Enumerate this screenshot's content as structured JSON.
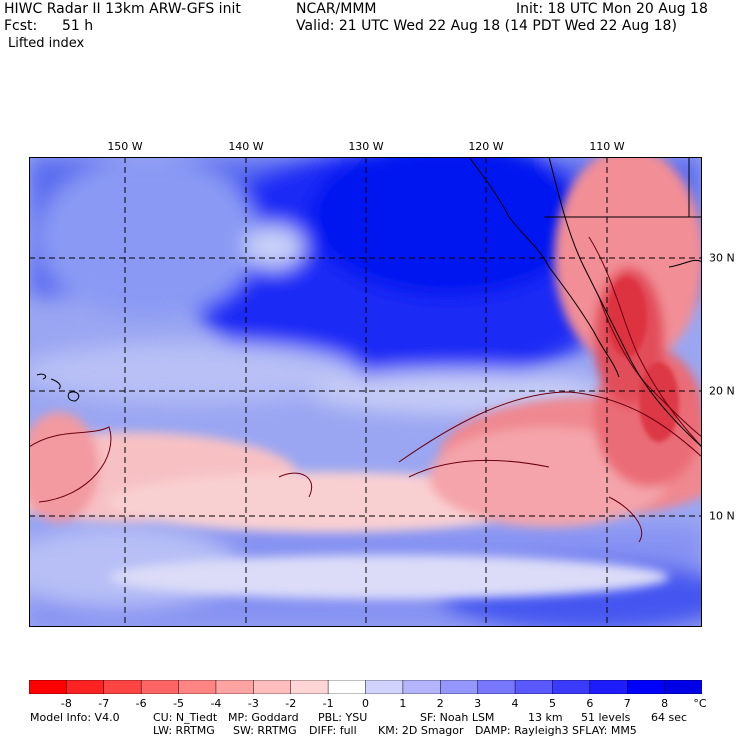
{
  "header": {
    "title_left": "HIWC Radar II 13km ARW-GFS init",
    "title_mid": "NCAR/MMM",
    "init": "Init: 18 UTC Mon 20 Aug 18",
    "fcst_label": "Fcst:",
    "fcst_value": "51 h",
    "valid": "Valid: 21 UTC Wed 22 Aug 18 (14 PDT Wed 22 Aug 18)",
    "field": "Lifted index"
  },
  "map": {
    "lon_labels": [
      "150 W",
      "140 W",
      "130 W",
      "120 W",
      "110 W"
    ],
    "lat_labels": [
      "30 N",
      "20 N",
      "10 N"
    ]
  },
  "colorbar": {
    "ticks": [
      "-8",
      "-7",
      "-6",
      "-5",
      "-4",
      "-3",
      "-2",
      "-1",
      "0",
      "1",
      "2",
      "3",
      "4",
      "5",
      "6",
      "7",
      "8"
    ],
    "unit": "°C",
    "colors": [
      "#ff0000",
      "#ff2222",
      "#ff4444",
      "#ff6565",
      "#ff8585",
      "#ffa3a3",
      "#ffbdbd",
      "#ffd5d5",
      "#ffffff",
      "#d2d2ff",
      "#b5b5ff",
      "#9696ff",
      "#7777ff",
      "#5959ff",
      "#3b3bff",
      "#1d1dff",
      "#0000ff",
      "#0000e6"
    ]
  },
  "footer": {
    "line1_model": "Model Info: V4.0",
    "line1_cu": "CU: N_Tiedt",
    "line1_mp": "MP: Goddard",
    "line1_pbl": "PBL: YSU",
    "line1_sf": "SF: Noah LSM",
    "line1_res": "13 km",
    "line1_levels": "51 levels",
    "line1_dt": "64 sec",
    "line2_lw": "LW: RRTMG",
    "line2_sw": "SW: RRTMG",
    "line2_diff": "DIFF: full",
    "line2_km": "KM: 2D Smagor",
    "line2_damp": "DAMP: Rayleigh3",
    "line2_sflay": "SFLAY: MM5"
  }
}
